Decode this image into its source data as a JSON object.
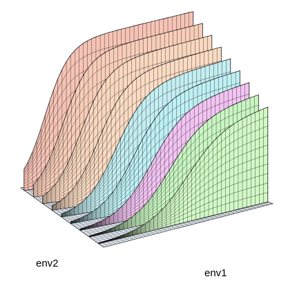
{
  "chart_data": {
    "type": "surface",
    "xlabel": "env1",
    "ylabel": "env2",
    "colors": [
      "#f6c4b6",
      "#f7cdb9",
      "#f9d8c0",
      "#fadcc4",
      "#c4eef2",
      "#bff0f4",
      "#f2c4f2",
      "#c9f5c2",
      "#d2f8c6"
    ]
  }
}
